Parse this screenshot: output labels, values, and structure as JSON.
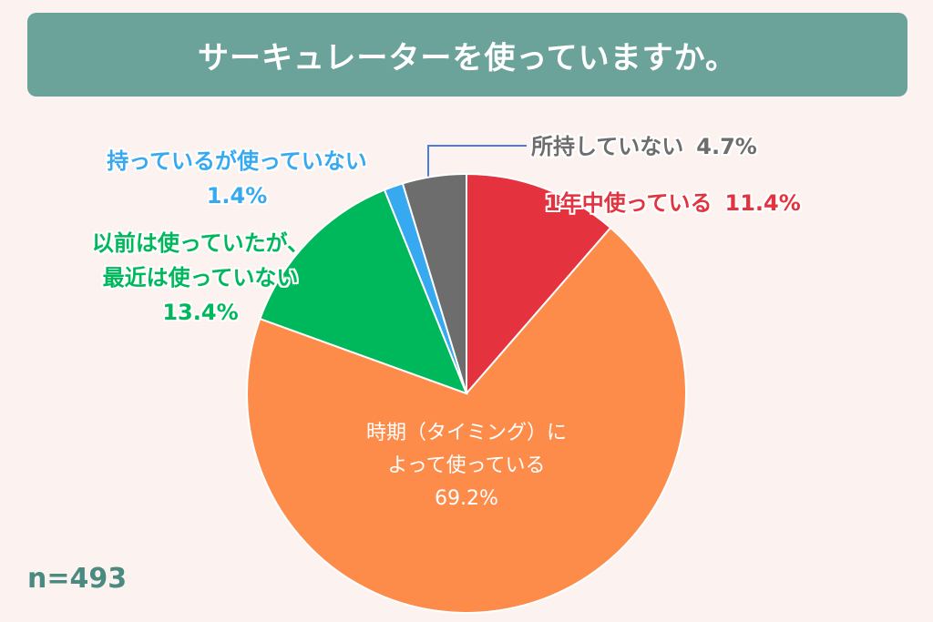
{
  "chart_data": {
    "type": "pie",
    "title": "サーキュレーターを使っていますか。",
    "note": "n=493",
    "categories": [
      "1年中使っている",
      "時期（タイミング）に\nよって使っている",
      "以前は使っていたが、\n最近は使っていない",
      "持っているが使っていない",
      "所持していない"
    ],
    "values": [
      11.4,
      69.2,
      13.4,
      1.4,
      4.7
    ],
    "value_labels": [
      "11.4%",
      "69.2%",
      "13.4%",
      "1.4%",
      "4.7%"
    ],
    "colors": [
      "#e5323f",
      "#fd8c4b",
      "#00b85c",
      "#36a9f0",
      "#6d6d6d"
    ]
  }
}
